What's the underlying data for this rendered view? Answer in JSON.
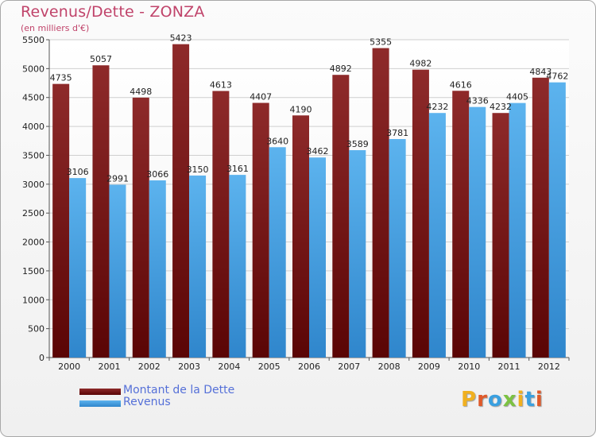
{
  "title": "Revenus/Dette - ZONZA",
  "subtitle": "(en milliers d'€)",
  "logo": {
    "letters": [
      "P",
      "r",
      "o",
      "x",
      "i",
      "t",
      "i"
    ],
    "colors": [
      "#f0b020",
      "#e05a2a",
      "#3aa0e0",
      "#7cc242",
      "#f0b020",
      "#3aa0e0",
      "#e05a2a"
    ]
  },
  "colors": {
    "dette": "#7a1515",
    "revenus": "#4aa6e8",
    "title": "#c0436a",
    "legend_text": "#5570d8"
  },
  "chart_data": {
    "type": "bar",
    "title": "Revenus/Dette - ZONZA",
    "subtitle": "(en milliers d'€)",
    "categories": [
      "2000",
      "2001",
      "2002",
      "2003",
      "2004",
      "2005",
      "2006",
      "2007",
      "2008",
      "2009",
      "2010",
      "2011",
      "2012"
    ],
    "series": [
      {
        "name": "Montant de la Dette",
        "values": [
          4735,
          5057,
          4498,
          5423,
          4613,
          4407,
          4190,
          4892,
          5355,
          4982,
          4616,
          4232,
          4843
        ]
      },
      {
        "name": "Revenus",
        "values": [
          3106,
          2991,
          3066,
          3150,
          3161,
          3640,
          3462,
          3589,
          3781,
          4232,
          4336,
          4405,
          4762
        ]
      }
    ],
    "ylim": [
      0,
      5500
    ],
    "yticks": [
      0,
      500,
      1000,
      1500,
      2000,
      2500,
      3000,
      3500,
      4000,
      4500,
      5000,
      5500
    ],
    "grid": true,
    "legend_position": "bottom-left"
  }
}
